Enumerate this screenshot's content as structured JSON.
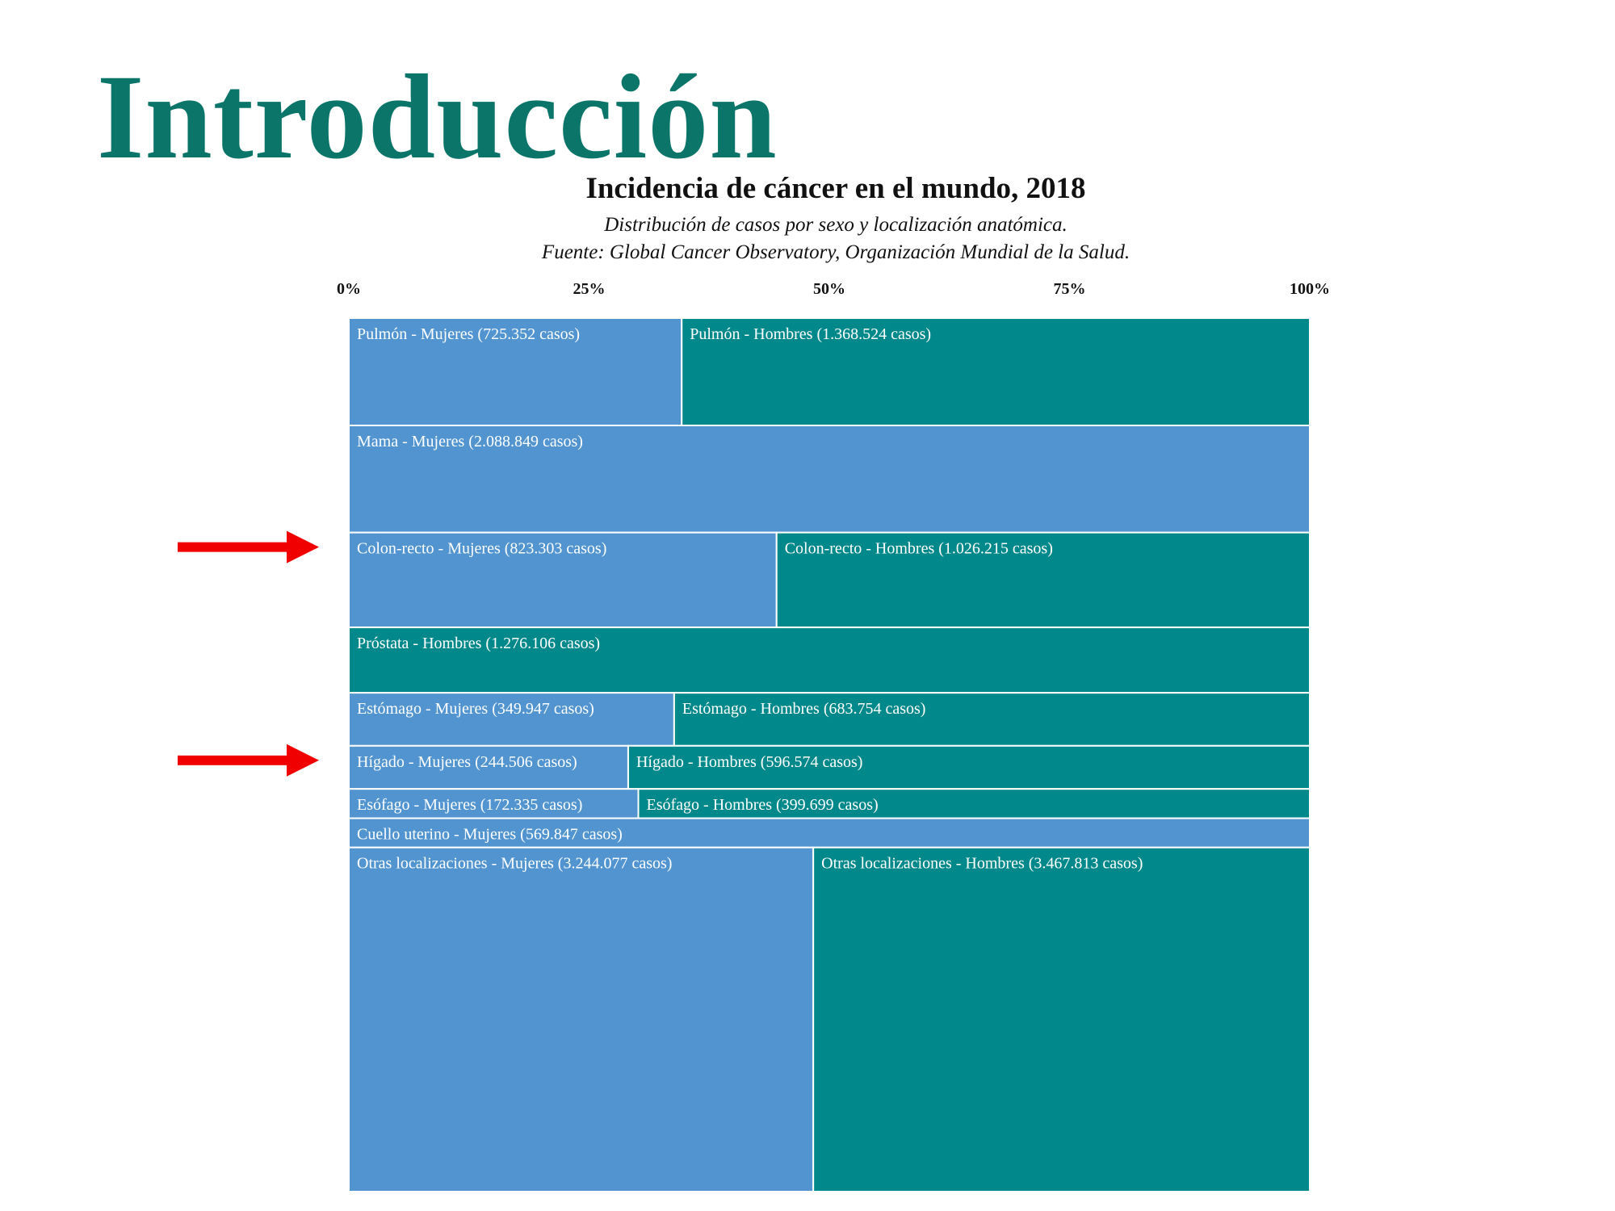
{
  "slide": {
    "title": "Introducción"
  },
  "colors": {
    "title": "#0b7569",
    "mujeres": "#5194cf",
    "hombres": "#00888a",
    "arrow": "#f00000",
    "border": "#ffffff"
  },
  "icons": [
    "arrow-right-icon",
    "arrow-right-icon"
  ],
  "chart_data": {
    "type": "treemap",
    "title": "Incidencia de cáncer en el mundo, 2018",
    "subtitle_lines": [
      "Distribución de casos por sexo y localización anatómica.",
      "Fuente: Global Cancer Observatory, Organización Mundial de la Salud."
    ],
    "x_ticks": [
      "0%",
      "25%",
      "50%",
      "75%",
      "100%"
    ],
    "series": [
      "Mujeres",
      "Hombres"
    ],
    "rows": [
      {
        "site": "Pulmón",
        "cells": [
          {
            "label": "Pulmón - Mujeres (725.352 casos)",
            "sex": "Mujeres",
            "value": 725352
          },
          {
            "label": "Pulmón - Hombres (1.368.524 casos)",
            "sex": "Hombres",
            "value": 1368524
          }
        ]
      },
      {
        "site": "Mama",
        "cells": [
          {
            "label": "Mama - Mujeres (2.088.849 casos)",
            "sex": "Mujeres",
            "value": 2088849
          }
        ]
      },
      {
        "site": "Colon-recto",
        "highlighted": true,
        "cells": [
          {
            "label": "Colon-recto - Mujeres (823.303 casos)",
            "sex": "Mujeres",
            "value": 823303
          },
          {
            "label": "Colon-recto - Hombres (1.026.215 casos)",
            "sex": "Hombres",
            "value": 1026215
          }
        ]
      },
      {
        "site": "Próstata",
        "cells": [
          {
            "label": "Próstata - Hombres (1.276.106 casos)",
            "sex": "Hombres",
            "value": 1276106
          }
        ]
      },
      {
        "site": "Estómago",
        "cells": [
          {
            "label": "Estómago - Mujeres (349.947 casos)",
            "sex": "Mujeres",
            "value": 349947
          },
          {
            "label": "Estómago - Hombres (683.754 casos)",
            "sex": "Hombres",
            "value": 683754
          }
        ]
      },
      {
        "site": "Hígado",
        "highlighted": true,
        "cells": [
          {
            "label": "Hígado - Mujeres (244.506 casos)",
            "sex": "Mujeres",
            "value": 244506
          },
          {
            "label": "Hígado - Hombres (596.574 casos)",
            "sex": "Hombres",
            "value": 596574
          }
        ]
      },
      {
        "site": "Esófago",
        "cells": [
          {
            "label": "Esófago - Mujeres (172.335 casos)",
            "sex": "Mujeres",
            "value": 172335
          },
          {
            "label": "Esófago - Hombres (399.699 casos)",
            "sex": "Hombres",
            "value": 399699
          }
        ]
      },
      {
        "site": "Cuello uterino",
        "cells": [
          {
            "label": "Cuello uterino - Mujeres (569.847 casos)",
            "sex": "Mujeres",
            "value": 569847
          }
        ]
      },
      {
        "site": "Otras localizaciones",
        "cells": [
          {
            "label": "Otras localizaciones - Mujeres (3.244.077 casos)",
            "sex": "Mujeres",
            "value": 3244077
          },
          {
            "label": "Otras localizaciones - Hombres (3.467.813 casos)",
            "sex": "Hombres",
            "value": 3467813
          }
        ]
      }
    ]
  }
}
